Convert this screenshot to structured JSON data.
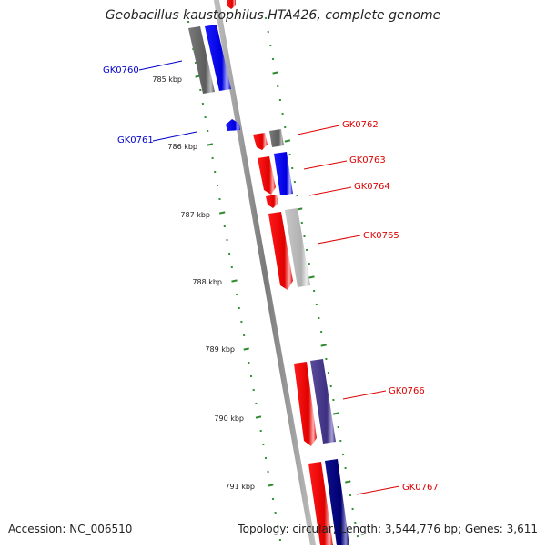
{
  "title": "Geobacillus kaustophilus HTA426, complete genome",
  "footer": {
    "accession": "Accession: NC_006510",
    "summary": "Topology: circular; Length: 3,544,776 bp; Genes: 3,611"
  },
  "colors": {
    "backbone": "#8c8c8c",
    "tick": "#2e8b2e",
    "forward_label": "#0000cc",
    "reverse_label": "#dd0000"
  },
  "scale": {
    "unit": "kbp",
    "ticks": [
      {
        "label": "785 kbp",
        "value_kbp": 785
      },
      {
        "label": "786 kbp",
        "value_kbp": 786
      },
      {
        "label": "787 kbp",
        "value_kbp": 787
      },
      {
        "label": "788 kbp",
        "value_kbp": 788
      },
      {
        "label": "789 kbp",
        "value_kbp": 789
      },
      {
        "label": "790 kbp",
        "value_kbp": 790
      },
      {
        "label": "791 kbp",
        "value_kbp": 791
      }
    ]
  },
  "genes": [
    {
      "label": "GK0760",
      "strand": "+",
      "cog_color": "#0000ee",
      "near_kbp": 784.9
    },
    {
      "label": "GK0761",
      "strand": "+",
      "cog_color": "#0000ee",
      "near_kbp": 785.9
    },
    {
      "label": "GK0762",
      "strand": "-",
      "cog_color": "#6e6e6e",
      "near_kbp": 786.1
    },
    {
      "label": "GK0763",
      "strand": "-",
      "cog_color": "#0000ee",
      "near_kbp": 786.5
    },
    {
      "label": "GK0764",
      "strand": "-",
      "cog_color": "#ee0000",
      "near_kbp": 786.8
    },
    {
      "label": "GK0765",
      "strand": "-",
      "cog_color": "#bbbbbb",
      "near_kbp": 787.5
    },
    {
      "label": "GK0766",
      "strand": "-",
      "cog_color": "#4b3c8c",
      "near_kbp": 789.6
    },
    {
      "label": "GK0767",
      "strand": "-",
      "cog_color": "#000088",
      "near_kbp": 791.0
    }
  ]
}
